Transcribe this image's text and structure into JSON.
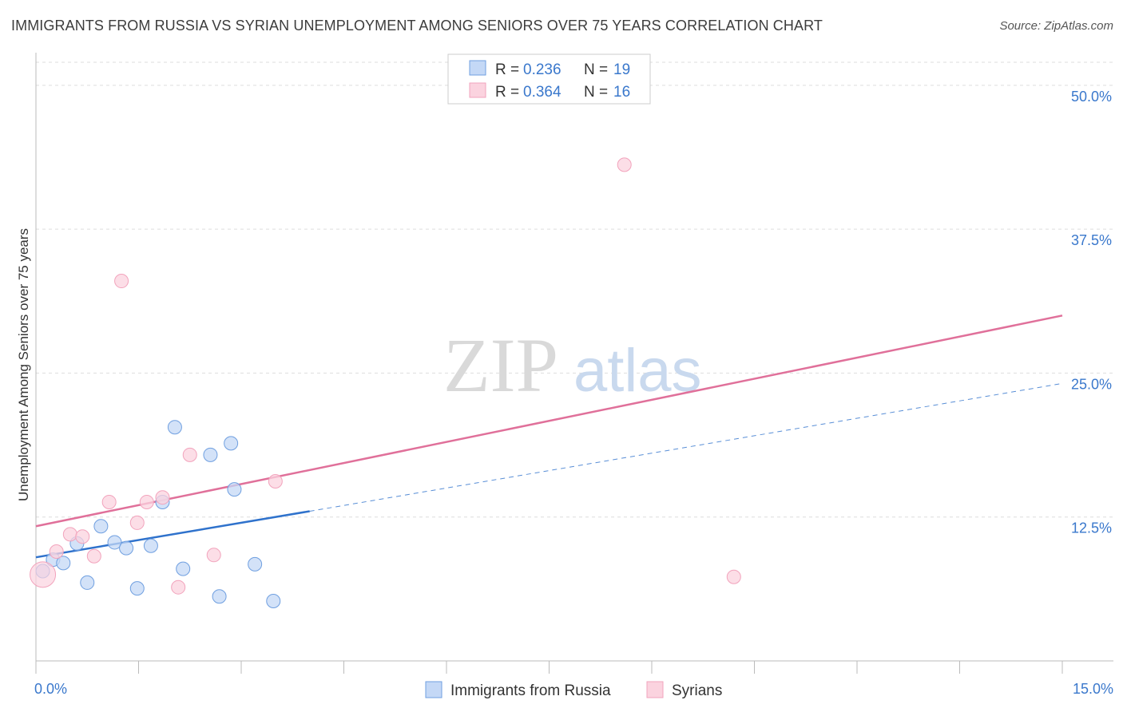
{
  "title": "IMMIGRANTS FROM RUSSIA VS SYRIAN UNEMPLOYMENT AMONG SENIORS OVER 75 YEARS CORRELATION CHART",
  "source": "Source: ZipAtlas.com",
  "watermark": {
    "zip": "ZIP",
    "atlas": "atlas"
  },
  "chart_data": {
    "type": "scatter",
    "title": "IMMIGRANTS FROM RUSSIA VS SYRIAN UNEMPLOYMENT AMONG SENIORS OVER 75 YEARS CORRELATION CHART",
    "xlabel": "",
    "ylabel": "Unemployment Among Seniors over 75 years",
    "xlim": [
      0,
      15
    ],
    "ylim": [
      0,
      52
    ],
    "x_tick_labels": [
      {
        "value": 0,
        "label": "0.0%"
      },
      {
        "value": 15,
        "label": "15.0%"
      }
    ],
    "y_ticks": [
      {
        "value": 12.5,
        "label": "12.5%"
      },
      {
        "value": 25,
        "label": "25.0%"
      },
      {
        "value": 37.5,
        "label": "37.5%"
      },
      {
        "value": 50,
        "label": "50.0%"
      }
    ],
    "grid": true,
    "legend_position": "top-center",
    "series": [
      {
        "name": "Immigrants from Russia",
        "color": "#6f9fe0",
        "fill": "#c4d8f6",
        "line_color": "#2f72cc",
        "R": "0.236",
        "N": "19",
        "points": [
          {
            "x": 0.1,
            "y": 7.8
          },
          {
            "x": 0.25,
            "y": 8.8
          },
          {
            "x": 0.4,
            "y": 8.5
          },
          {
            "x": 0.6,
            "y": 10.2
          },
          {
            "x": 0.75,
            "y": 6.8
          },
          {
            "x": 0.95,
            "y": 11.7
          },
          {
            "x": 1.15,
            "y": 10.3
          },
          {
            "x": 1.32,
            "y": 9.8
          },
          {
            "x": 1.48,
            "y": 6.3
          },
          {
            "x": 1.68,
            "y": 10.0
          },
          {
            "x": 1.85,
            "y": 13.8
          },
          {
            "x": 2.03,
            "y": 20.3
          },
          {
            "x": 2.15,
            "y": 8.0
          },
          {
            "x": 2.55,
            "y": 17.9
          },
          {
            "x": 2.68,
            "y": 5.6
          },
          {
            "x": 2.85,
            "y": 18.9
          },
          {
            "x": 2.9,
            "y": 14.9
          },
          {
            "x": 3.2,
            "y": 8.4
          },
          {
            "x": 3.47,
            "y": 5.2
          }
        ],
        "trend": {
          "x0": 0.0,
          "y0": 9.0,
          "x1": 4.0,
          "y1": 13.0,
          "dashed_to_x": 15.0,
          "dashed_to_y": 24.1
        }
      },
      {
        "name": "Syrians",
        "color": "#f2a3bc",
        "fill": "#fbd3df",
        "line_color": "#e0709a",
        "R": "0.364",
        "N": "16",
        "points": [
          {
            "x": 0.1,
            "y": 7.5
          },
          {
            "x": 0.3,
            "y": 9.5
          },
          {
            "x": 0.5,
            "y": 11.0
          },
          {
            "x": 0.68,
            "y": 10.8
          },
          {
            "x": 0.85,
            "y": 9.1
          },
          {
            "x": 1.07,
            "y": 13.8
          },
          {
            "x": 1.25,
            "y": 33.0
          },
          {
            "x": 1.48,
            "y": 12.0
          },
          {
            "x": 1.62,
            "y": 13.8
          },
          {
            "x": 1.85,
            "y": 14.2
          },
          {
            "x": 2.08,
            "y": 6.4
          },
          {
            "x": 2.25,
            "y": 17.9
          },
          {
            "x": 2.6,
            "y": 9.2
          },
          {
            "x": 3.5,
            "y": 15.6
          },
          {
            "x": 8.6,
            "y": 43.1
          },
          {
            "x": 10.2,
            "y": 7.3
          }
        ],
        "trend": {
          "x0": 0.0,
          "y0": 11.7,
          "x1": 15.0,
          "y1": 30.0
        }
      }
    ]
  }
}
